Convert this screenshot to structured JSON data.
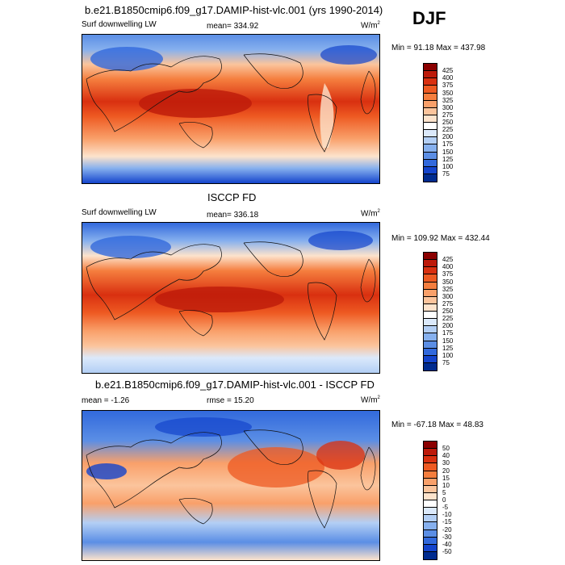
{
  "season": "DJF",
  "panels": [
    {
      "title": "b.e21.B1850cmip6.f09_g17.DAMIP-hist-vlc.001 (yrs 1990-2014)",
      "left_label": "Surf downwelling LW",
      "center_label": "mean= 334.92",
      "units": "W/m",
      "units_sup": "2",
      "minmax": "Min =  91.18 Max = 437.98",
      "colorbar_labels": [
        "425",
        "400",
        "375",
        "350",
        "325",
        "300",
        "275",
        "250",
        "225",
        "200",
        "175",
        "150",
        "125",
        "100",
        "75"
      ],
      "colorbar_colors": [
        "#8b0000",
        "#bd1a0a",
        "#d93010",
        "#ee5a22",
        "#f57e3e",
        "#f9a06a",
        "#fbc49c",
        "#fde3cc",
        "#ffffff",
        "#dbe9fb",
        "#b3cff5",
        "#86b0ee",
        "#5b8ee5",
        "#3269dc",
        "#1444cc",
        "#002b8f"
      ]
    },
    {
      "title": "ISCCP FD",
      "left_label": "Surf downwelling LW",
      "center_label": "mean= 336.18",
      "units": "W/m",
      "units_sup": "2",
      "minmax": "Min = 109.92 Max = 432.44",
      "colorbar_labels": [
        "425",
        "400",
        "375",
        "350",
        "325",
        "300",
        "275",
        "250",
        "225",
        "200",
        "175",
        "150",
        "125",
        "100",
        "75"
      ],
      "colorbar_colors": [
        "#8b0000",
        "#bd1a0a",
        "#d93010",
        "#ee5a22",
        "#f57e3e",
        "#f9a06a",
        "#fbc49c",
        "#fde3cc",
        "#ffffff",
        "#dbe9fb",
        "#b3cff5",
        "#86b0ee",
        "#5b8ee5",
        "#3269dc",
        "#1444cc",
        "#002b8f"
      ]
    },
    {
      "title": "b.e21.B1850cmip6.f09_g17.DAMIP-hist-vlc.001 - ISCCP FD",
      "left_label": "mean =  -1.26",
      "center_label": "rmse =  15.20",
      "units": "W/m",
      "units_sup": "2",
      "minmax": "Min = -67.18 Max =  48.83",
      "colorbar_labels": [
        "50",
        "40",
        "30",
        "20",
        "15",
        "10",
        "5",
        "0",
        "-5",
        "-10",
        "-15",
        "-20",
        "-30",
        "-40",
        "-50"
      ],
      "colorbar_colors": [
        "#8b0000",
        "#bd1a0a",
        "#d93010",
        "#ee5a22",
        "#f57e3e",
        "#f9a06a",
        "#fbc49c",
        "#fde3cc",
        "#ffffff",
        "#dbe9fb",
        "#b3cff5",
        "#86b0ee",
        "#5b8ee5",
        "#3269dc",
        "#1444cc",
        "#002b8f"
      ]
    }
  ],
  "chart_data": [
    {
      "type": "heatmap",
      "title": "b.e21.B1850cmip6.f09_g17.DAMIP-hist-vlc.001 (yrs 1990-2014)",
      "variable": "Surf downwelling LW",
      "units": "W/m2",
      "mean": 334.92,
      "min": 91.18,
      "max": 437.98,
      "contour_levels": [
        75,
        100,
        125,
        150,
        175,
        200,
        225,
        250,
        275,
        300,
        325,
        350,
        375,
        400,
        425
      ]
    },
    {
      "type": "heatmap",
      "title": "ISCCP FD",
      "variable": "Surf downwelling LW",
      "units": "W/m2",
      "mean": 336.18,
      "min": 109.92,
      "max": 432.44,
      "contour_levels": [
        75,
        100,
        125,
        150,
        175,
        200,
        225,
        250,
        275,
        300,
        325,
        350,
        375,
        400,
        425
      ]
    },
    {
      "type": "heatmap",
      "title": "b.e21.B1850cmip6.f09_g17.DAMIP-hist-vlc.001 - ISCCP FD",
      "units": "W/m2",
      "mean": -1.26,
      "rmse": 15.2,
      "min": -67.18,
      "max": 48.83,
      "contour_levels": [
        -50,
        -40,
        -30,
        -20,
        -15,
        -10,
        -5,
        0,
        5,
        10,
        15,
        20,
        30,
        40,
        50
      ]
    }
  ]
}
